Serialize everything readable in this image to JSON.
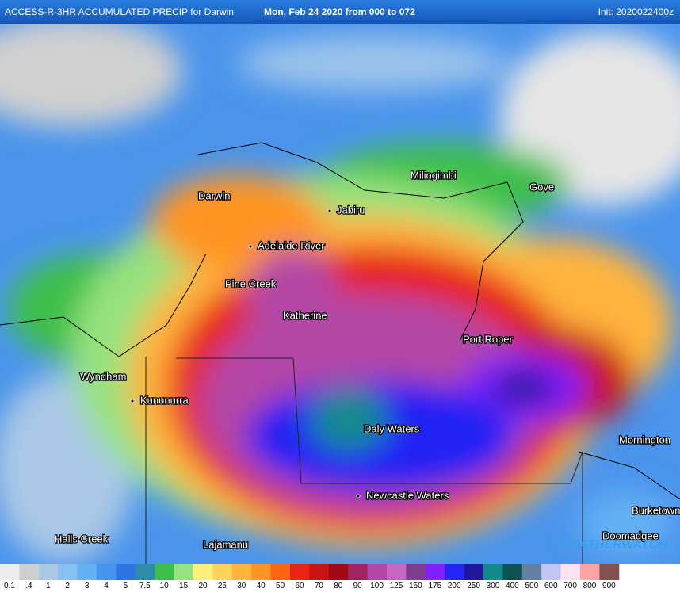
{
  "header": {
    "title": "ACCESS-R-3HR ACCUMULATED PRECIP for Darwin",
    "date": "Mon, Feb 24 2020 from 000 to 072",
    "init": "Init: 2020022400z"
  },
  "places": [
    "Darwin",
    "Milingimbi",
    "Gove",
    "Jabiru",
    "Adelaide River",
    "Pine Creek",
    "Katherine",
    "Port Roper",
    "Wyndham",
    "Kununurra",
    "Daly Waters",
    "Mornington",
    "Newcastle Waters",
    "Burketown",
    "Halls Creek",
    "Lajamanu",
    "Doomadgee"
  ],
  "logo": "WEATHERWATCH",
  "legend": [
    {
      "label": "0.1",
      "color": "#ececec"
    },
    {
      "label": ".4",
      "color": "#cfcfcf"
    },
    {
      "label": "1",
      "color": "#aac8e6"
    },
    {
      "label": "2",
      "color": "#86bff2"
    },
    {
      "label": "3",
      "color": "#63b0f4"
    },
    {
      "label": "4",
      "color": "#4594f0"
    },
    {
      "label": "5",
      "color": "#2f72e4"
    },
    {
      "label": "7.5",
      "color": "#2e8ca8"
    },
    {
      "label": "10",
      "color": "#3cbf4a"
    },
    {
      "label": "15",
      "color": "#96e27e"
    },
    {
      "label": "20",
      "color": "#fff07a"
    },
    {
      "label": "25",
      "color": "#ffd35a"
    },
    {
      "label": "30",
      "color": "#ffb43c"
    },
    {
      "label": "40",
      "color": "#ff9420"
    },
    {
      "label": "50",
      "color": "#ff6410"
    },
    {
      "label": "60",
      "color": "#e82412"
    },
    {
      "label": "70",
      "color": "#c81414"
    },
    {
      "label": "80",
      "color": "#a00818"
    },
    {
      "label": "90",
      "color": "#a02462"
    },
    {
      "label": "100",
      "color": "#b446a6"
    },
    {
      "label": "125",
      "color": "#c866c6"
    },
    {
      "label": "150",
      "color": "#7e3c8c"
    },
    {
      "label": "175",
      "color": "#8020ff"
    },
    {
      "label": "200",
      "color": "#2424f4"
    },
    {
      "label": "250",
      "color": "#22149c"
    },
    {
      "label": "300",
      "color": "#128a8a"
    },
    {
      "label": "400",
      "color": "#0f5050"
    },
    {
      "label": "500",
      "color": "#6480a0"
    },
    {
      "label": "600",
      "color": "#c4c4f2"
    },
    {
      "label": "700",
      "color": "#ffe2f2"
    },
    {
      "label": "800",
      "color": "#ffa4a4"
    },
    {
      "label": "900",
      "color": "#805252"
    }
  ]
}
